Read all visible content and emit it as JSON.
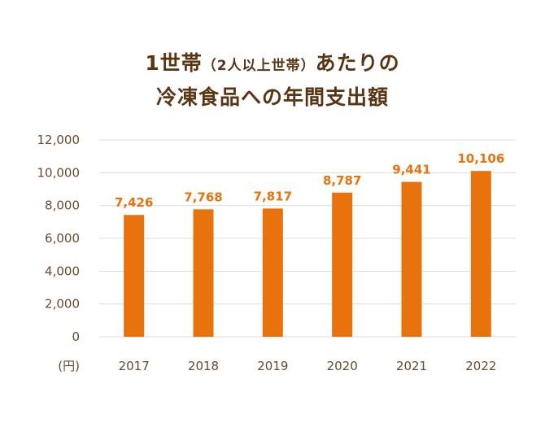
{
  "chart_data": {
    "type": "bar",
    "title_main": "1世帯",
    "title_paren": "（2人以上世帯）",
    "title_tail": "あたりの",
    "title_line2": "冷凍食品への年間支出額",
    "unit_label": "(円)",
    "categories": [
      "2017",
      "2018",
      "2019",
      "2020",
      "2021",
      "2022"
    ],
    "values": [
      7426,
      7768,
      7817,
      8787,
      9441,
      10106
    ],
    "value_labels": [
      "7,426",
      "7,768",
      "7,817",
      "8,787",
      "9,441",
      "10,106"
    ],
    "y_ticks": [
      0,
      2000,
      4000,
      6000,
      8000,
      10000,
      12000
    ],
    "y_tick_labels": [
      "0",
      "2,000",
      "4,000",
      "6,000",
      "8,000",
      "10,000",
      "12,000"
    ],
    "ylim": [
      0,
      12000
    ],
    "grid": true,
    "bar_color": "#e8720c",
    "label_color": "#e8720c",
    "text_color": "#5a3514"
  }
}
